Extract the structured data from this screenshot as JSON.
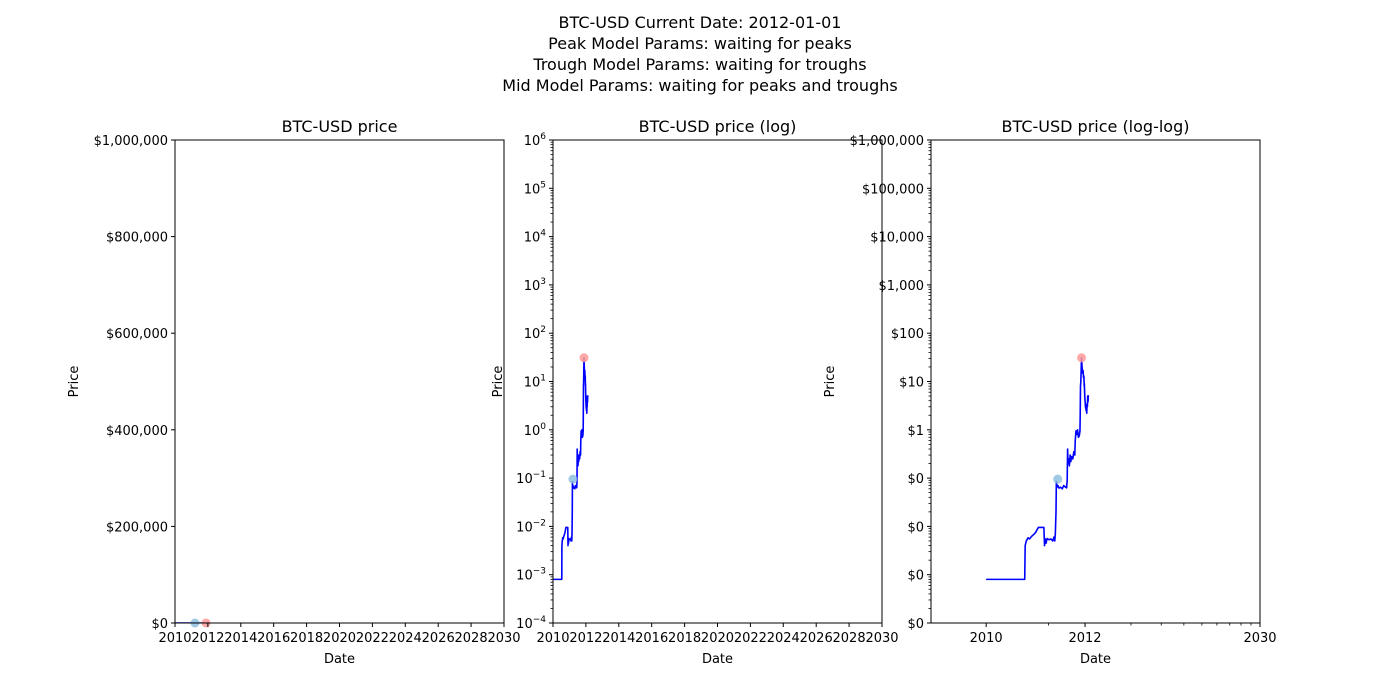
{
  "suptitle": {
    "line1": "BTC-USD Current Date: 2012-01-01",
    "line2": "Peak Model Params: waiting for peaks",
    "line3": "Trough Model Params: waiting for troughs",
    "line4": "Mid Model Params: waiting for peaks and troughs"
  },
  "colors": {
    "price_line": "#0000ff",
    "peak_marker": "#ff9999",
    "trough_marker": "#88bbdd"
  },
  "chart_data": [
    {
      "type": "line",
      "title": "BTC-USD price",
      "xlabel": "Date",
      "ylabel": "Price",
      "yscale": "linear",
      "xscale": "date",
      "xlim": [
        "2010-01-01",
        "2030-01-01"
      ],
      "ylim": [
        0,
        1000000
      ],
      "xticks": [
        "2010",
        "2012",
        "2014",
        "2016",
        "2018",
        "2020",
        "2022",
        "2024",
        "2026",
        "2028",
        "2030"
      ],
      "yticks": [
        {
          "value": 0,
          "label": "$0"
        },
        {
          "value": 200000,
          "label": "$200,000"
        },
        {
          "value": 400000,
          "label": "$400,000"
        },
        {
          "value": 600000,
          "label": "$600,000"
        },
        {
          "value": 800000,
          "label": "$800,000"
        },
        {
          "value": 1000000,
          "label": "$1,000,000"
        }
      ],
      "grid": false
    },
    {
      "type": "line",
      "title": "BTC-USD price (log)",
      "xlabel": "Date",
      "ylabel": "Price",
      "yscale": "log",
      "xscale": "date",
      "xlim": [
        "2010-01-01",
        "2030-01-01"
      ],
      "ylim": [
        0.0001,
        1000000
      ],
      "xticks": [
        "2010",
        "2012",
        "2014",
        "2016",
        "2018",
        "2020",
        "2022",
        "2024",
        "2026",
        "2028",
        "2030"
      ],
      "yticks": [
        {
          "value": 0.0001,
          "label": "10",
          "exp": "−4"
        },
        {
          "value": 0.001,
          "label": "10",
          "exp": "−3"
        },
        {
          "value": 0.01,
          "label": "10",
          "exp": "−2"
        },
        {
          "value": 0.1,
          "label": "10",
          "exp": "−1"
        },
        {
          "value": 1,
          "label": "10",
          "exp": "0"
        },
        {
          "value": 10,
          "label": "10",
          "exp": "1"
        },
        {
          "value": 100,
          "label": "10",
          "exp": "2"
        },
        {
          "value": 1000,
          "label": "10",
          "exp": "3"
        },
        {
          "value": 10000,
          "label": "10",
          "exp": "4"
        },
        {
          "value": 100000,
          "label": "10",
          "exp": "5"
        },
        {
          "value": 1000000,
          "label": "10",
          "exp": "6"
        }
      ],
      "grid": false
    },
    {
      "type": "line",
      "title": "BTC-USD price (log-log)",
      "xlabel": "Date",
      "ylabel": "Price",
      "yscale": "log",
      "xscale": "log",
      "xlim": [
        "2009-07-18",
        "2030-01-01"
      ],
      "ylim": [
        0.0001,
        1000000
      ],
      "xticks": [
        {
          "value": "2010-01-01",
          "label": "2010"
        },
        {
          "value": "2012-01-01",
          "label": "2012"
        },
        {
          "value": "2030-01-01",
          "label": "2030"
        }
      ],
      "yticks": [
        {
          "value": 0.0001,
          "label": "$0"
        },
        {
          "value": 0.001,
          "label": "$0"
        },
        {
          "value": 0.01,
          "label": "$0"
        },
        {
          "value": 0.1,
          "label": "$0"
        },
        {
          "value": 1,
          "label": "$1"
        },
        {
          "value": 10,
          "label": "$10"
        },
        {
          "value": 100,
          "label": "$100"
        },
        {
          "value": 1000,
          "label": "$1,000"
        },
        {
          "value": 10000,
          "label": "$10,000"
        },
        {
          "value": 100000,
          "label": "$100,000"
        },
        {
          "value": 1000000,
          "label": "$1,000,000"
        }
      ],
      "grid": false
    }
  ],
  "price_series": [
    {
      "date": "2010-01-01",
      "price": 0.0008
    },
    {
      "date": "2010-07-15",
      "price": 0.0008
    },
    {
      "date": "2010-07-18",
      "price": 0.004
    },
    {
      "date": "2010-07-25",
      "price": 0.005
    },
    {
      "date": "2010-08-05",
      "price": 0.0058
    },
    {
      "date": "2010-08-15",
      "price": 0.0055
    },
    {
      "date": "2010-08-28",
      "price": 0.0062
    },
    {
      "date": "2010-09-12",
      "price": 0.0068
    },
    {
      "date": "2010-09-25",
      "price": 0.0075
    },
    {
      "date": "2010-10-08",
      "price": 0.0088
    },
    {
      "date": "2010-10-15",
      "price": 0.0095
    },
    {
      "date": "2010-11-25",
      "price": 0.0095
    },
    {
      "date": "2010-11-30",
      "price": 0.004
    },
    {
      "date": "2010-12-05",
      "price": 0.0055
    },
    {
      "date": "2010-12-12",
      "price": 0.0045
    },
    {
      "date": "2010-12-20",
      "price": 0.0056
    },
    {
      "date": "2011-01-05",
      "price": 0.0053
    },
    {
      "date": "2011-01-20",
      "price": 0.0055
    },
    {
      "date": "2011-02-05",
      "price": 0.005
    },
    {
      "date": "2011-02-15",
      "price": 0.006
    },
    {
      "date": "2011-02-22",
      "price": 0.005
    },
    {
      "date": "2011-02-27",
      "price": 0.007
    },
    {
      "date": "2011-03-05",
      "price": 0.02
    },
    {
      "date": "2011-03-08",
      "price": 0.085
    },
    {
      "date": "2011-03-14",
      "price": 0.065
    },
    {
      "date": "2011-03-22",
      "price": 0.07
    },
    {
      "date": "2011-04-01",
      "price": 0.062
    },
    {
      "date": "2011-04-15",
      "price": 0.065
    },
    {
      "date": "2011-05-01",
      "price": 0.06
    },
    {
      "date": "2011-05-15",
      "price": 0.07
    },
    {
      "date": "2011-06-01",
      "price": 0.065
    },
    {
      "date": "2011-06-12",
      "price": 0.063
    },
    {
      "date": "2011-06-18",
      "price": 0.09
    },
    {
      "date": "2011-06-22",
      "price": 0.4
    },
    {
      "date": "2011-06-26",
      "price": 0.2
    },
    {
      "date": "2011-07-02",
      "price": 0.25
    },
    {
      "date": "2011-07-10",
      "price": 0.18
    },
    {
      "date": "2011-07-18",
      "price": 0.3
    },
    {
      "date": "2011-07-25",
      "price": 0.22
    },
    {
      "date": "2011-08-02",
      "price": 0.28
    },
    {
      "date": "2011-08-15",
      "price": 0.25
    },
    {
      "date": "2011-08-25",
      "price": 0.35
    },
    {
      "date": "2011-09-05",
      "price": 0.3
    },
    {
      "date": "2011-09-10",
      "price": 0.6
    },
    {
      "date": "2011-09-18",
      "price": 0.95
    },
    {
      "date": "2011-09-28",
      "price": 0.8
    },
    {
      "date": "2011-10-06",
      "price": 1.0
    },
    {
      "date": "2011-10-15",
      "price": 0.7
    },
    {
      "date": "2011-10-25",
      "price": 0.75
    },
    {
      "date": "2011-11-02",
      "price": 0.95
    },
    {
      "date": "2011-11-05",
      "price": 2.2
    },
    {
      "date": "2011-11-08",
      "price": 8
    },
    {
      "date": "2011-11-12",
      "price": 10
    },
    {
      "date": "2011-11-16",
      "price": 18
    },
    {
      "date": "2011-11-20",
      "price": 31
    },
    {
      "date": "2011-11-25",
      "price": 22
    },
    {
      "date": "2011-12-01",
      "price": 15
    },
    {
      "date": "2011-12-08",
      "price": 17
    },
    {
      "date": "2011-12-14",
      "price": 12
    },
    {
      "date": "2011-12-18",
      "price": 13
    },
    {
      "date": "2011-12-22",
      "price": 8
    },
    {
      "date": "2011-12-24",
      "price": 9
    },
    {
      "date": "2011-12-27",
      "price": 6
    },
    {
      "date": "2011-12-30",
      "price": 4.5
    },
    {
      "date": "2012-01-02",
      "price": 3.8
    },
    {
      "date": "2012-01-05",
      "price": 3.2
    },
    {
      "date": "2012-01-08",
      "price": 2.8
    },
    {
      "date": "2012-01-11",
      "price": 3.3
    },
    {
      "date": "2012-01-14",
      "price": 2.5
    },
    {
      "date": "2012-01-18",
      "price": 3.0
    },
    {
      "date": "2012-01-22",
      "price": 2.2
    },
    {
      "date": "2012-01-26",
      "price": 3.5
    },
    {
      "date": "2012-01-30",
      "price": 3.0
    },
    {
      "date": "2012-02-03",
      "price": 5.0
    },
    {
      "date": "2012-02-07",
      "price": 3.8
    },
    {
      "date": "2012-02-11",
      "price": 5.2
    }
  ],
  "peak_points": [
    {
      "date": "2011-11-20",
      "price": 31
    }
  ],
  "trough_points": [
    {
      "date": "2011-03-20",
      "price": 0.095
    }
  ]
}
